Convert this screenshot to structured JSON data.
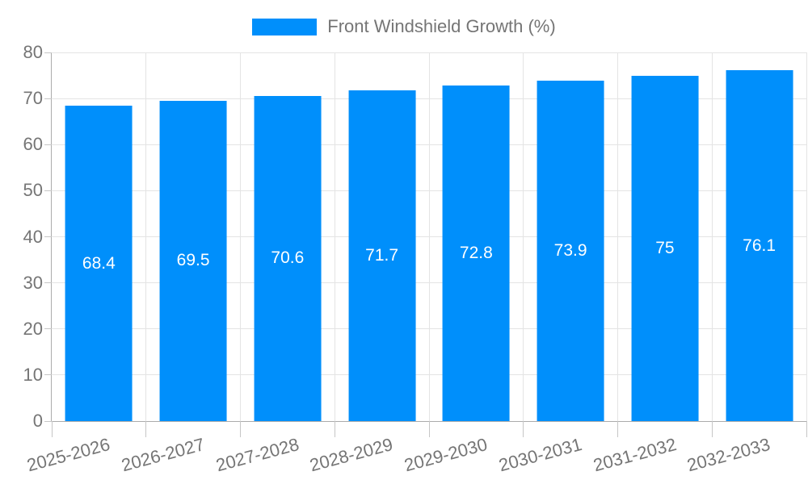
{
  "legend": {
    "label": "Front Windshield Growth (%)"
  },
  "chart_data": {
    "type": "bar",
    "title": "Front Windshield Growth (%)",
    "categories": [
      "2025-2026",
      "2026-2027",
      "2027-2028",
      "2028-2029",
      "2029-2030",
      "2030-2031",
      "2031-2032",
      "2032-2033"
    ],
    "values": [
      68.4,
      69.5,
      70.6,
      71.7,
      72.8,
      73.9,
      75,
      76.1
    ],
    "value_labels": [
      "68.4",
      "69.5",
      "70.6",
      "71.7",
      "72.8",
      "73.9",
      "75",
      "76.1"
    ],
    "xlabel": "",
    "ylabel": "",
    "ylim": [
      0,
      80
    ],
    "yticks": [
      0,
      10,
      20,
      30,
      40,
      50,
      60,
      70,
      80
    ],
    "grid": true,
    "legend_position": "top",
    "colors": {
      "bar": "#008FFB",
      "bar_value_text": "#ffffff",
      "axis_text": "#757575",
      "gridline": "#e4e4e4",
      "axis_line": "#ababab",
      "tick": "#c6c6c6"
    }
  }
}
